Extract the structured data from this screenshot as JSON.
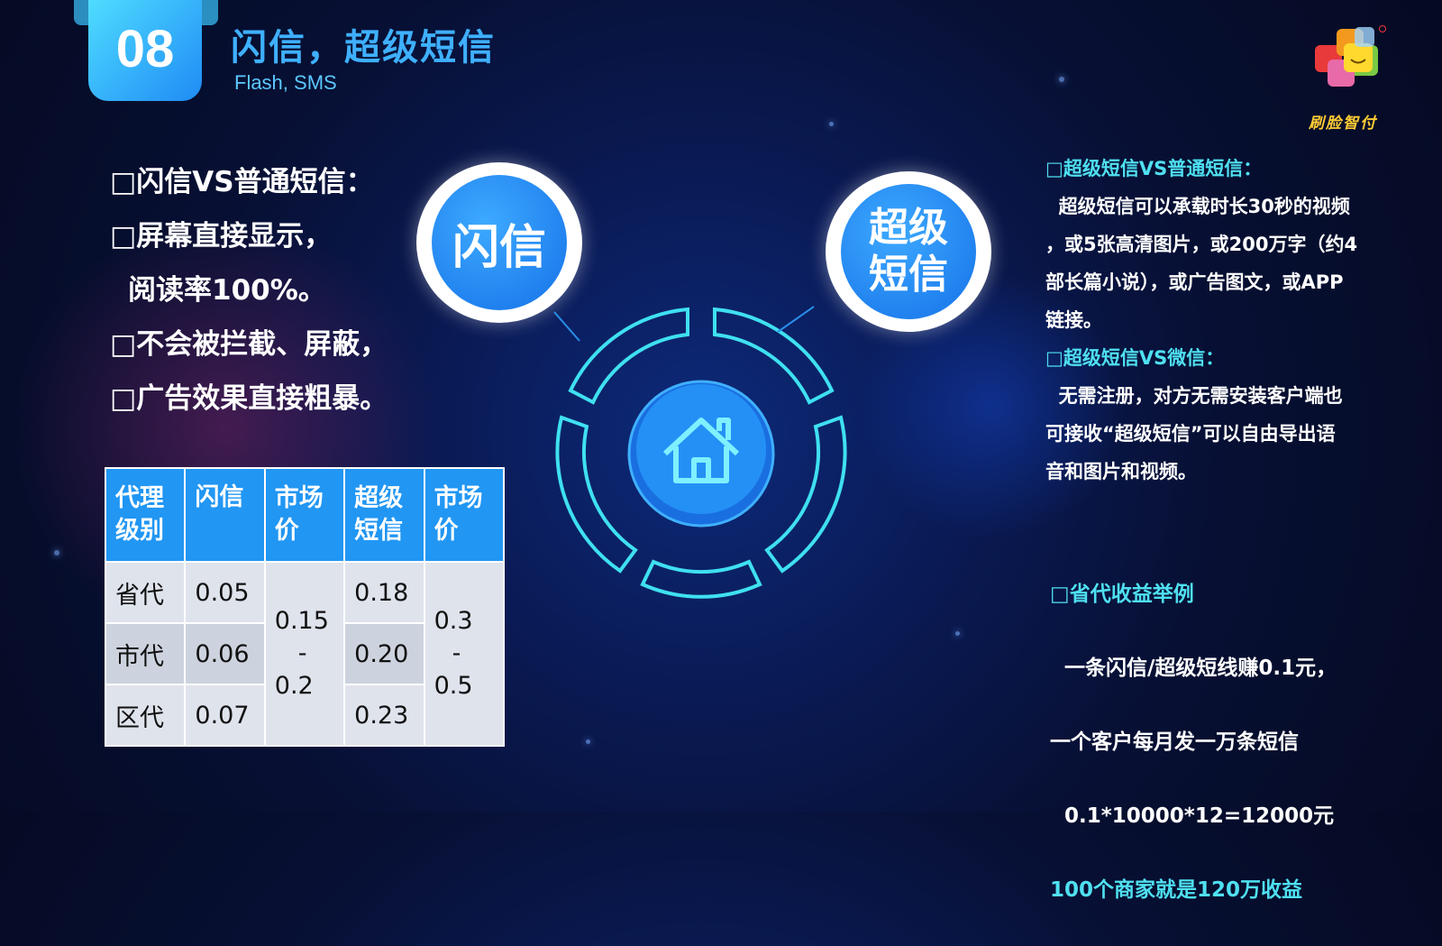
{
  "header": {
    "number": "08",
    "title": "闪信，超级短信",
    "subtitle": "Flash, SMS"
  },
  "logo": {
    "text": "刷脸智付",
    "registered": "®"
  },
  "left_points": [
    "□闪信VS普通短信：",
    "□屏幕直接显示，",
    "  阅读率100%。",
    "□不会被拦截、屏蔽，",
    "□广告效果直接粗暴。"
  ],
  "table": {
    "headers": [
      [
        "代理",
        "级别"
      ],
      [
        "闪信"
      ],
      [
        "市场",
        "价"
      ],
      [
        "超级",
        "短信"
      ],
      [
        "市场",
        "价"
      ]
    ],
    "rows": [
      {
        "level": "省代",
        "flash": "0.05",
        "super": "0.18"
      },
      {
        "level": "市代",
        "flash": "0.06",
        "super": "0.20"
      },
      {
        "level": "区代",
        "flash": "0.07",
        "super": "0.23"
      }
    ],
    "flash_price": [
      "0.15",
      "-",
      "0.2"
    ],
    "super_price": [
      "0.3",
      "-",
      "0.5"
    ]
  },
  "diagram": {
    "left_bubble": "闪信",
    "right_bubble": [
      "超级",
      "短信"
    ],
    "center_icon": "home-icon"
  },
  "right_sections": {
    "s1_title": "□超级短信VS普通短信：",
    "s1_lines": [
      "  超级短信可以承载时长30秒的视频",
      "，或5张高清图片，或200万字（约4",
      "部长篇小说），或广告图文，或APP",
      "链接。"
    ],
    "s2_title": "□超级短信VS微信：",
    "s2_lines": [
      "  无需注册，对方无需安装客户端也",
      "可接收“超级短信”可以自由导出语",
      "音和图片和视频。"
    ],
    "s3_title": "□省代收益举例",
    "s3_lines": [
      "  一条闪信/超级短线赚0.1元，",
      "一个客户每月发一万条短信",
      "  0.1*10000*12=12000元"
    ],
    "s3_highlight": "100个商家就是120万收益"
  },
  "colors": {
    "accent": "#2196f3",
    "cyan": "#4fe0f0",
    "title": "#3fb0ff",
    "logo_text": "#ffcc33"
  }
}
